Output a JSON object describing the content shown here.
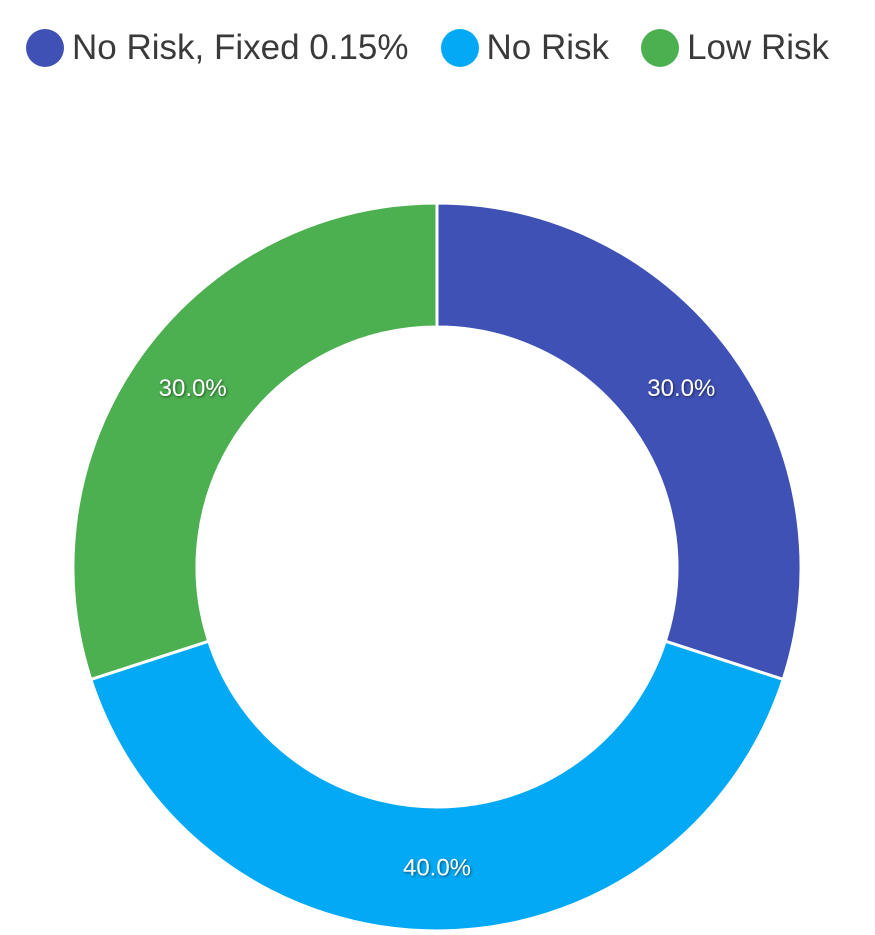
{
  "chart_data": {
    "type": "pie",
    "variant": "donut",
    "categories": [
      "No Risk, Fixed 0.15%",
      "No Risk",
      "Low Risk"
    ],
    "values": [
      30.0,
      40.0,
      30.0
    ],
    "labels": [
      "30.0%",
      "40.0%",
      "30.0%"
    ],
    "colors": [
      "#3f51b5",
      "#03a9f4",
      "#4caf50"
    ],
    "title": "",
    "legend_position": "top",
    "start_angle_deg": 0,
    "direction": "clockwise"
  },
  "legend": {
    "items": [
      {
        "label": "No Risk, Fixed 0.15%",
        "color": "#3f51b5"
      },
      {
        "label": "No Risk",
        "color": "#03a9f4"
      },
      {
        "label": "Low Risk",
        "color": "#4caf50"
      }
    ]
  }
}
